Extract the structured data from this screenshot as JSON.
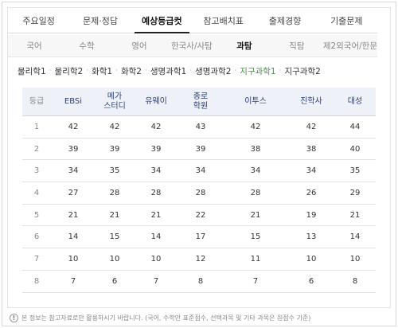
{
  "tabs": [
    {
      "label": "주요일정",
      "active": false
    },
    {
      "label": "문제·정답",
      "active": false
    },
    {
      "label": "예상등급컷",
      "active": true
    },
    {
      "label": "참고배치표",
      "active": false
    },
    {
      "label": "출제경향",
      "active": false
    },
    {
      "label": "기출문제",
      "active": false
    }
  ],
  "subjects": [
    {
      "label": "국어",
      "active": false
    },
    {
      "label": "수학",
      "active": false
    },
    {
      "label": "영어",
      "active": false
    },
    {
      "label": "한국사/사탐",
      "active": false
    },
    {
      "label": "과탐",
      "active": true
    },
    {
      "label": "직탐",
      "active": false
    },
    {
      "label": "제2외국어/한문",
      "active": false
    }
  ],
  "sub_subjects": [
    {
      "label": "물리학1",
      "active": false
    },
    {
      "label": "물리학2",
      "active": false
    },
    {
      "label": "화학1",
      "active": false
    },
    {
      "label": "화학2",
      "active": false
    },
    {
      "label": "생명과학1",
      "active": false
    },
    {
      "label": "생명과학2",
      "active": false
    },
    {
      "label": "지구과학1",
      "active": true
    },
    {
      "label": "지구과학2",
      "active": false
    }
  ],
  "sub_separator": "·",
  "table": {
    "headers": [
      "등급",
      "EBSi",
      "메가\n스터디",
      "유웨이",
      "종로\n학원",
      "이투스",
      "진학사",
      "대성"
    ],
    "rows": [
      [
        "1",
        "42",
        "42",
        "42",
        "43",
        "42",
        "42",
        "44"
      ],
      [
        "2",
        "39",
        "39",
        "39",
        "39",
        "38",
        "38",
        "40"
      ],
      [
        "3",
        "34",
        "35",
        "34",
        "34",
        "34",
        "34",
        "35"
      ],
      [
        "4",
        "27",
        "28",
        "28",
        "28",
        "28",
        "26",
        "29"
      ],
      [
        "5",
        "21",
        "21",
        "21",
        "22",
        "21",
        "19",
        "21"
      ],
      [
        "6",
        "14",
        "15",
        "14",
        "17",
        "15",
        "13",
        "14"
      ],
      [
        "7",
        "10",
        "10",
        "10",
        "12",
        "11",
        "10",
        "10"
      ],
      [
        "8",
        "7",
        "6",
        "7",
        "8",
        "7",
        "6",
        "8"
      ]
    ]
  },
  "note": {
    "icon": "!",
    "text": "본 정보는 참고자료로만 활용하시기 바랍니다. (국어, 수학만 표준점수, 선택과목 및 기타 과목은 원점수 기준)"
  }
}
